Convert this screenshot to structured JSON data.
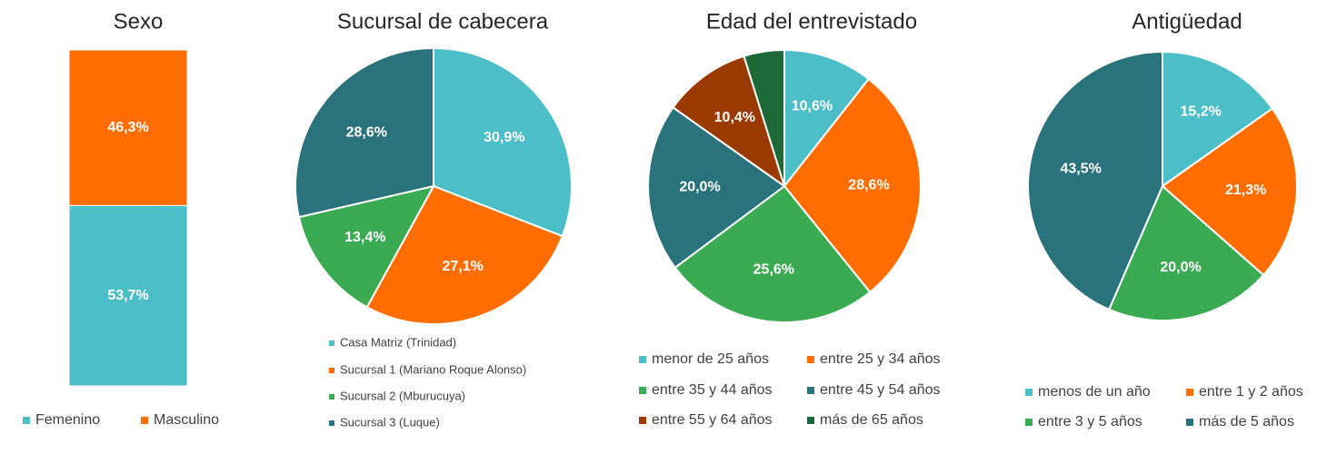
{
  "chart_data": [
    {
      "type": "stacked_bar",
      "title": "Sexo",
      "series": [
        {
          "name": "Femenino",
          "color": "#4bbec8",
          "values": [
            53.7
          ],
          "value_labels": [
            "53,7%"
          ]
        },
        {
          "name": "Masculino",
          "color": "#ff6d00",
          "values": [
            46.3
          ],
          "value_labels": [
            "46,3%"
          ]
        }
      ]
    },
    {
      "type": "pie",
      "title": "Sucursal de cabecera",
      "categories": [
        "Casa Matriz (Trinidad)",
        "Sucursal 1 (Mariano Roque Alonso)",
        "Sucursal 2 (Mburucuya)",
        "Sucursal 3 (Luque)"
      ],
      "values": [
        30.9,
        27.1,
        13.4,
        28.6
      ],
      "value_labels": [
        "30,9%",
        "27,1%",
        "13,4%",
        "28,6%"
      ],
      "colors": [
        "#4bbec8",
        "#ff6d00",
        "#3aab52",
        "#2a737c"
      ]
    },
    {
      "type": "pie",
      "title": "Edad del entrevistado",
      "categories": [
        "menor de 25 años",
        "entre 25 y 34 años",
        "entre 35 y 44 años",
        "entre 45 y 54 años",
        "entre 55 y 64 años",
        "más de 65 años"
      ],
      "values": [
        10.6,
        28.6,
        25.6,
        20.0,
        10.4,
        4.8
      ],
      "value_labels": [
        "10,6%",
        "28,6%",
        "25,6%",
        "20,0%",
        "10,4%",
        null
      ],
      "colors": [
        "#4bbec8",
        "#ff6d00",
        "#3aab52",
        "#2a737c",
        "#9a3a00",
        "#1d6a38"
      ]
    },
    {
      "type": "pie",
      "title": "Antigüedad",
      "categories": [
        "menos de un año",
        "entre 1 y 2 años",
        "entre 3 y 5 años",
        "más de 5 años"
      ],
      "values": [
        15.2,
        21.3,
        20.0,
        43.5
      ],
      "value_labels": [
        "15,2%",
        "21,3%",
        "20,0%",
        "43,5%"
      ],
      "colors": [
        "#4bbec8",
        "#ff6d00",
        "#3aab52",
        "#2a737c"
      ]
    }
  ]
}
